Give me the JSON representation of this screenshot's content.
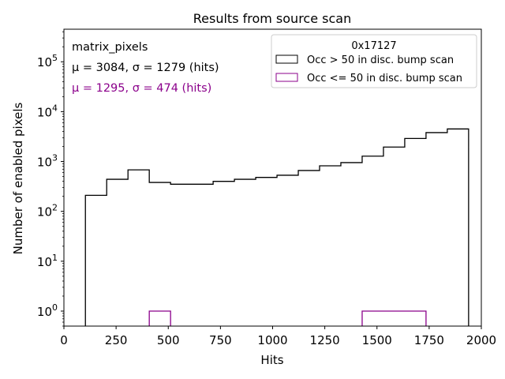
{
  "chart_data": {
    "type": "histogram",
    "title": "Results from source scan",
    "xlabel": "Hits",
    "ylabel": "Number of enabled pixels",
    "xlim": [
      0,
      2000
    ],
    "ylim": [
      0.5,
      450000
    ],
    "yscale": "log",
    "grid": false,
    "legend_placement": "top-right",
    "legend_title": "0x17127",
    "x_ticks": [
      "0",
      "250",
      "500",
      "750",
      "1000",
      "1250",
      "1500",
      "1750",
      "2000"
    ],
    "y_ticks": [
      {
        "value": 1,
        "label": "10^0"
      },
      {
        "value": 10,
        "label": "10^1"
      },
      {
        "value": 100,
        "label": "10^2"
      },
      {
        "value": 1000,
        "label": "10^3"
      },
      {
        "value": 10000,
        "label": "10^4"
      },
      {
        "value": 100000,
        "label": "10^5"
      }
    ],
    "annotations": {
      "name": "matrix_pixels",
      "series1_stats": "μ = 3084, σ = 1279 (hits)",
      "series2_stats": "μ = 1295, σ = 474 (hits)"
    },
    "series": [
      {
        "name": "Occ > 50 in disc. bump scan",
        "color": "#000000",
        "bin_edges": [
          103,
          205,
          307,
          409,
          511,
          613,
          715,
          817,
          919,
          1021,
          1123,
          1225,
          1327,
          1429,
          1531,
          1633,
          1735,
          1837,
          1939
        ],
        "counts": [
          210,
          440,
          680,
          380,
          350,
          350,
          400,
          440,
          480,
          530,
          660,
          820,
          950,
          1280,
          1950,
          2900,
          3800,
          4500
        ]
      },
      {
        "name": "Occ <= 50 in disc. bump scan",
        "color": "#8b008b",
        "bin_edges": [
          409,
          511,
          613,
          715,
          817,
          919,
          1021,
          1123,
          1225,
          1327,
          1429,
          1531,
          1633,
          1735
        ],
        "counts": [
          1,
          0,
          0,
          0,
          0,
          0,
          0,
          0,
          0,
          0,
          1,
          1,
          1
        ]
      }
    ]
  }
}
